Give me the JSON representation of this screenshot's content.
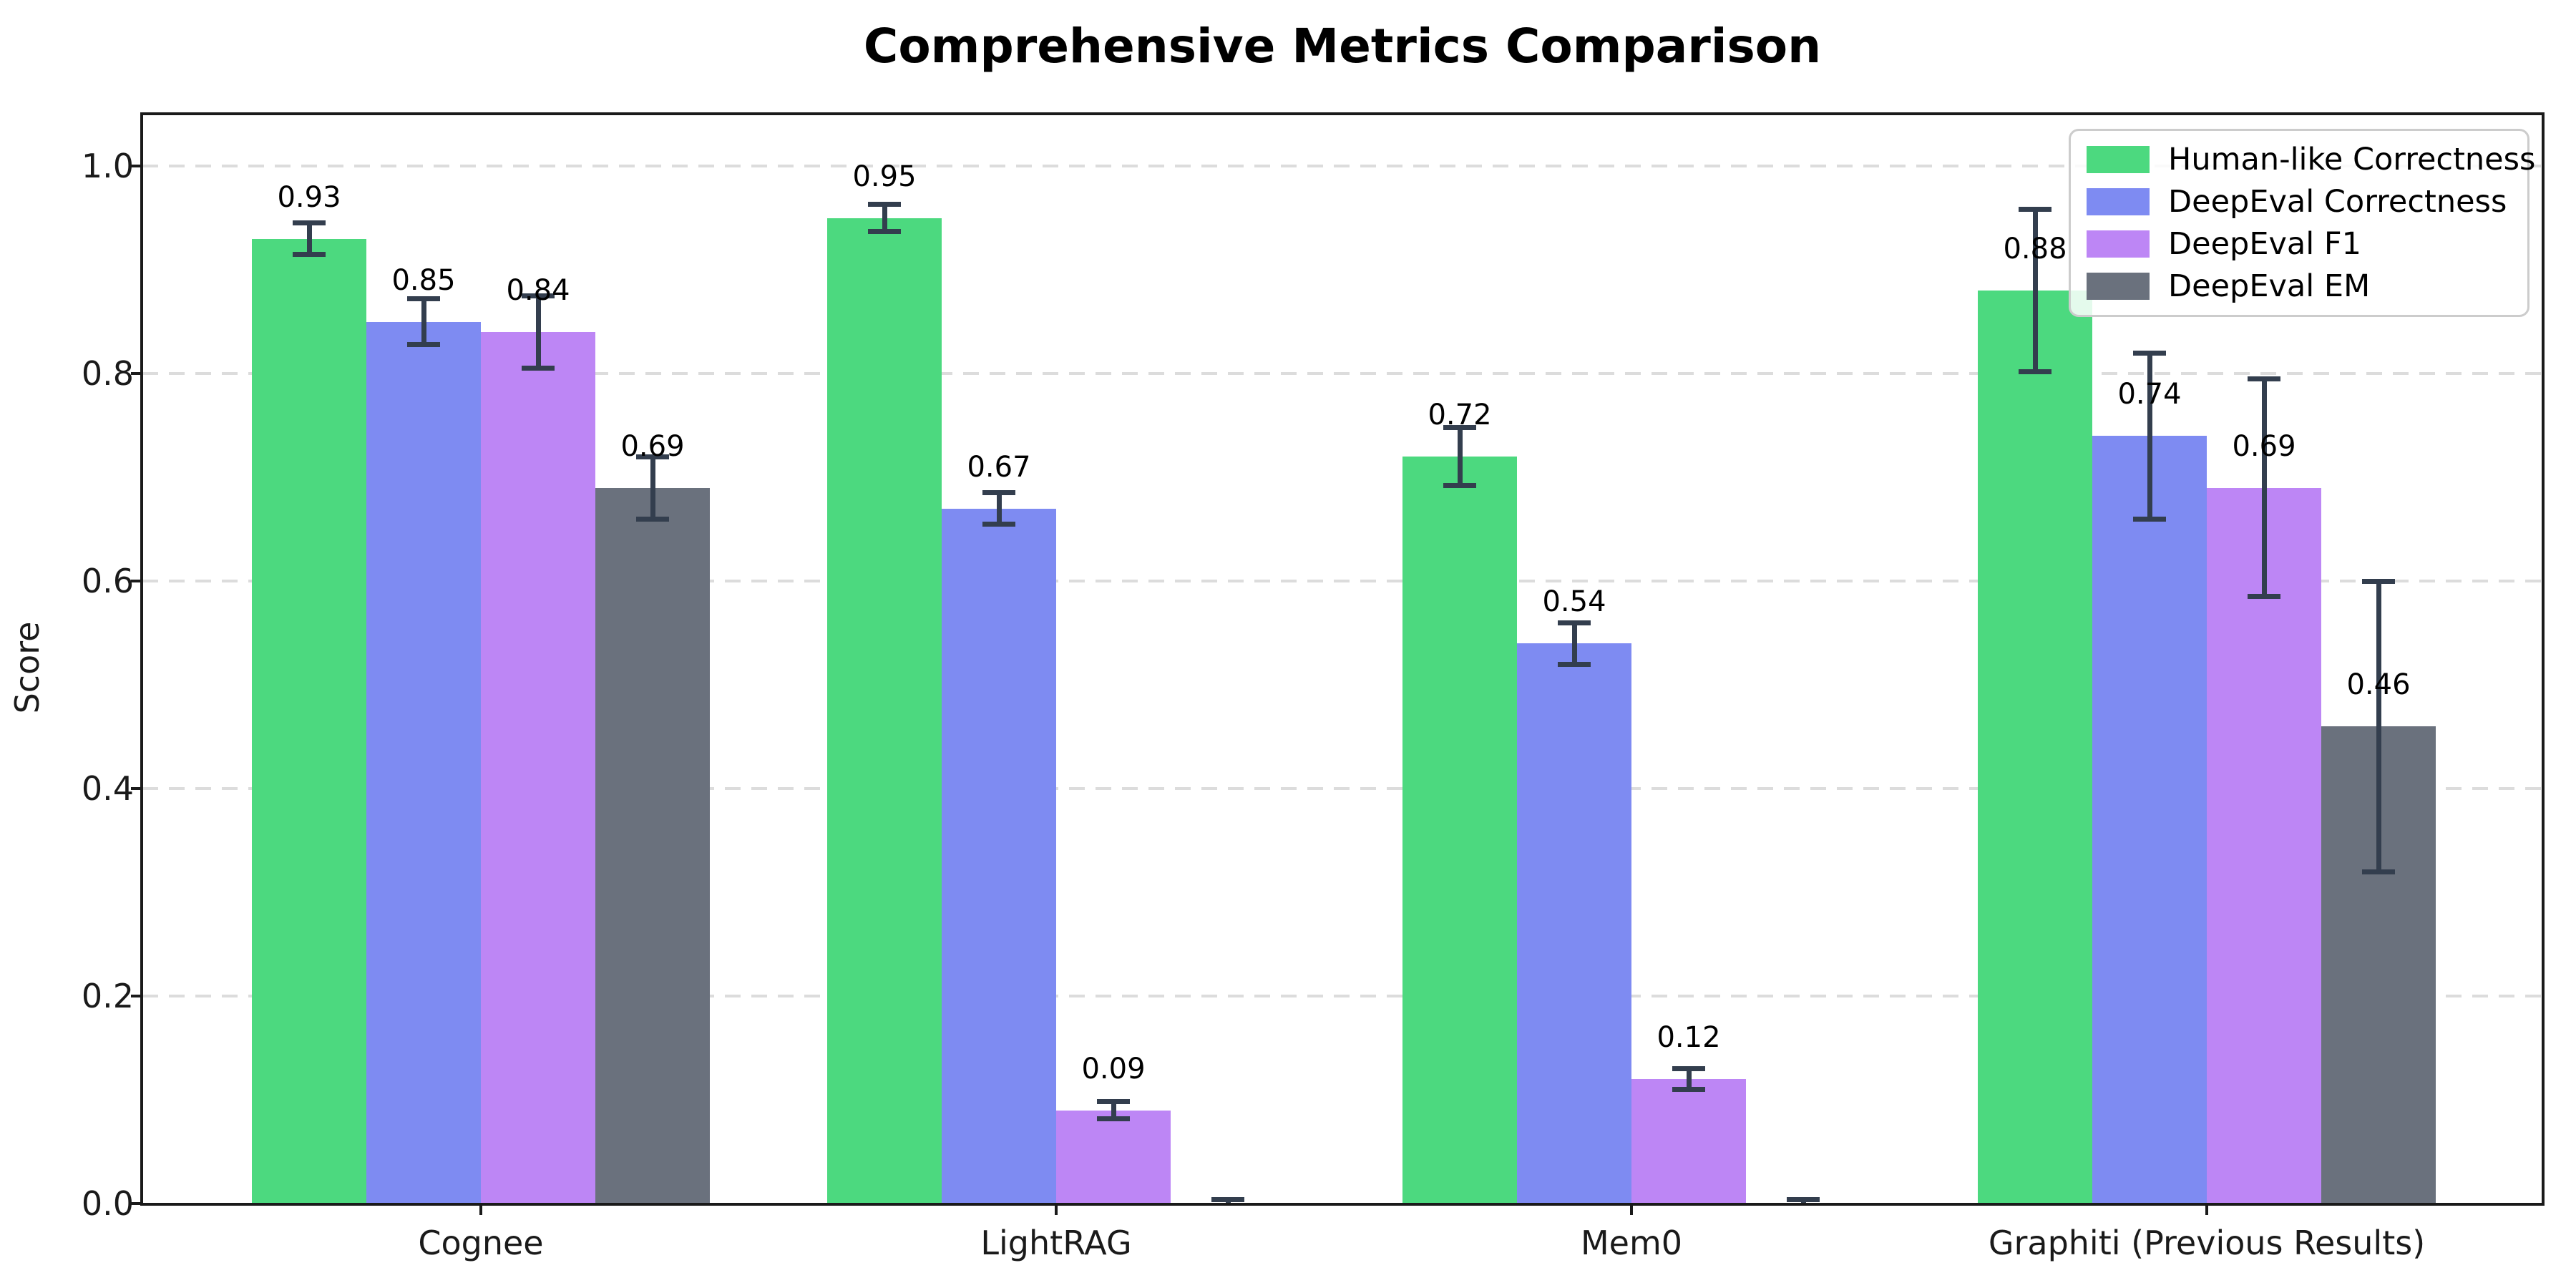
{
  "figure": {
    "title": "Comprehensive Metrics Comparison",
    "background_color": "#ffffff"
  },
  "chart_data": {
    "type": "bar",
    "title": "Comprehensive Metrics Comparison",
    "xlabel": "",
    "ylabel": "Score",
    "ylim": [
      0,
      1.05
    ],
    "yticks": [
      {
        "value": 0.0,
        "label": "0.0"
      },
      {
        "value": 0.2,
        "label": "0.2"
      },
      {
        "value": 0.4,
        "label": "0.4"
      },
      {
        "value": 0.6,
        "label": "0.6"
      },
      {
        "value": 0.8,
        "label": "0.8"
      },
      {
        "value": 1.0,
        "label": "1.0"
      }
    ],
    "grid": {
      "axis": "y",
      "style": "dashed",
      "color": "#dcdcdc",
      "gridline_values": [
        0.2,
        0.4,
        0.6,
        0.8,
        1.0
      ]
    },
    "legend_position": "upper right",
    "error_bar_color": "#333e4e",
    "categories": [
      "Cognee",
      "LightRAG",
      "Mem0",
      "Graphiti (Previous Results)"
    ],
    "series": [
      {
        "name": "Human-like Correctness",
        "color": "#4cd97f",
        "values": [
          0.93,
          0.95,
          0.72,
          0.88
        ],
        "errors": [
          0.015,
          0.013,
          0.028,
          0.078
        ],
        "value_labels": [
          "0.93",
          "0.95",
          "0.72",
          "0.88"
        ]
      },
      {
        "name": "DeepEval Correctness",
        "color": "#7e8bf2",
        "values": [
          0.85,
          0.67,
          0.54,
          0.74
        ],
        "errors": [
          0.022,
          0.015,
          0.02,
          0.08
        ],
        "value_labels": [
          "0.85",
          "0.67",
          "0.54",
          "0.74"
        ]
      },
      {
        "name": "DeepEval F1",
        "color": "#bd86f5",
        "values": [
          0.84,
          0.09,
          0.12,
          0.69
        ],
        "errors": [
          0.035,
          0.008,
          0.01,
          0.105
        ],
        "value_labels": [
          "0.84",
          "0.09",
          "0.12",
          "0.69"
        ]
      },
      {
        "name": "DeepEval EM",
        "color": "#6a717d",
        "values": [
          0.69,
          0.0,
          0.0,
          0.46
        ],
        "errors": [
          0.03,
          0.004,
          0.004,
          0.14
        ],
        "value_labels": [
          "0.69",
          "",
          "",
          "0.46"
        ]
      }
    ]
  }
}
